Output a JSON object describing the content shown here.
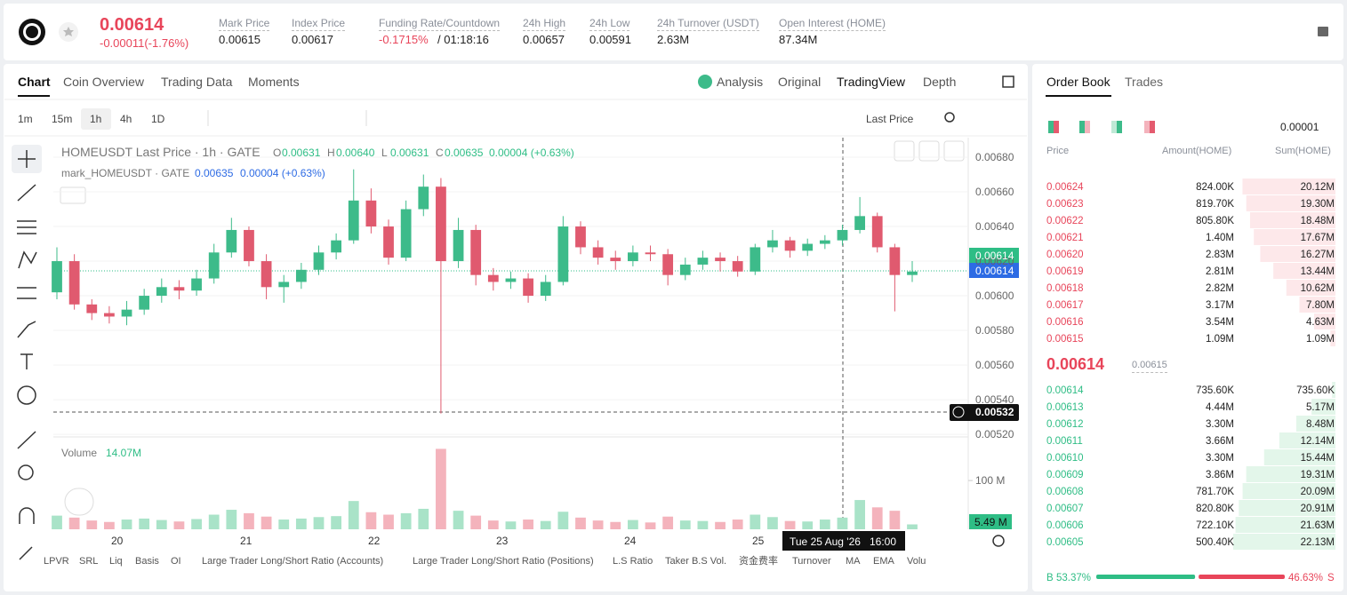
{
  "header": {
    "price": "0.00614",
    "change": "-0.00011(-1.76%)",
    "stats": [
      {
        "label": "Mark Price",
        "value": "0.00615"
      },
      {
        "label": "Index Price",
        "value": "0.00617"
      },
      {
        "label": "Funding Rate/Countdown",
        "value": "-0.1715%",
        "extra": "/ 01:18:16"
      },
      {
        "label": "24h High",
        "value": "0.00657"
      },
      {
        "label": "24h Low",
        "value": "0.00591"
      },
      {
        "label": "24h Turnover (USDT)",
        "value": "2.63M"
      },
      {
        "label": "Open Interest (HOME)",
        "value": "87.34M"
      }
    ]
  },
  "tabs": {
    "left": [
      "Chart",
      "Coin Overview",
      "Trading Data",
      "Moments"
    ],
    "right": [
      "Analysis",
      "Original",
      "TradingView",
      "Depth"
    ]
  },
  "toolbar": {
    "intervals": [
      "1m",
      "15m",
      "1h",
      "4h",
      "1D"
    ],
    "price_type": "Last Price"
  },
  "chart": {
    "legend": "HOMEUSDT Last Price · 1h · GATE",
    "ohlc": [
      {
        "label": "O",
        "value": "0.00631"
      },
      {
        "label": "H",
        "value": "0.00640"
      },
      {
        "label": "L",
        "value": "0.00631"
      },
      {
        "label": "C",
        "value": "0.00635"
      }
    ],
    "change": "0.00004 (+0.63%)",
    "mark_legend": "mark_HOMEUSDT · GATE",
    "mark_value": "0.00635",
    "mark_change": "0.00004 (+0.63%)",
    "ylim": [
      0.005185,
      0.006913
    ],
    "yticks": [
      {
        "value": 0.0068,
        "label": "0.00680"
      },
      {
        "value": 0.0066,
        "label": "0.00660"
      },
      {
        "value": 0.0064,
        "label": "0.00640"
      },
      {
        "value": 0.0062,
        "label": "0.00620"
      },
      {
        "value": 0.006,
        "label": "0.00600"
      },
      {
        "value": 0.0058,
        "label": "0.00580"
      },
      {
        "value": 0.0056,
        "label": "0.00560"
      },
      {
        "value": 0.0054,
        "label": "0.00540"
      },
      {
        "value": 0.0052,
        "label": "0.00520"
      }
    ],
    "last_tag": "0.00614",
    "mark_tag": "0.00614",
    "cross_tag": "0.00532",
    "candles": [
      [
        0.00602,
        0.00628,
        0.00598,
        0.0062
      ],
      [
        0.0062,
        0.00624,
        0.00592,
        0.00595
      ],
      [
        0.00595,
        0.00598,
        0.00586,
        0.0059
      ],
      [
        0.0059,
        0.00594,
        0.00584,
        0.00588
      ],
      [
        0.00588,
        0.00597,
        0.00583,
        0.00592
      ],
      [
        0.00592,
        0.00604,
        0.00589,
        0.006
      ],
      [
        0.006,
        0.0061,
        0.00596,
        0.00605
      ],
      [
        0.00605,
        0.00609,
        0.00598,
        0.00603
      ],
      [
        0.00603,
        0.00615,
        0.006,
        0.0061
      ],
      [
        0.0061,
        0.0063,
        0.00607,
        0.00625
      ],
      [
        0.00625,
        0.00645,
        0.00622,
        0.00638
      ],
      [
        0.00638,
        0.0064,
        0.00617,
        0.0062
      ],
      [
        0.0062,
        0.00624,
        0.00598,
        0.00605
      ],
      [
        0.00605,
        0.00612,
        0.00596,
        0.00608
      ],
      [
        0.00608,
        0.00619,
        0.00604,
        0.00615
      ],
      [
        0.00615,
        0.00629,
        0.00612,
        0.00625
      ],
      [
        0.00625,
        0.00636,
        0.00621,
        0.00632
      ],
      [
        0.00632,
        0.00673,
        0.0063,
        0.00655
      ],
      [
        0.00655,
        0.00662,
        0.00636,
        0.0064
      ],
      [
        0.0064,
        0.00644,
        0.00618,
        0.00622
      ],
      [
        0.00622,
        0.00655,
        0.0062,
        0.0065
      ],
      [
        0.0065,
        0.0067,
        0.00646,
        0.00663
      ],
      [
        0.00663,
        0.00668,
        0.00532,
        0.0062
      ],
      [
        0.0062,
        0.00645,
        0.00616,
        0.00638
      ],
      [
        0.00638,
        0.00641,
        0.00606,
        0.00612
      ],
      [
        0.00612,
        0.00616,
        0.00603,
        0.00608
      ],
      [
        0.00608,
        0.00614,
        0.00604,
        0.0061
      ],
      [
        0.0061,
        0.00613,
        0.00596,
        0.006
      ],
      [
        0.006,
        0.00612,
        0.00597,
        0.00608
      ],
      [
        0.00608,
        0.00646,
        0.00606,
        0.0064
      ],
      [
        0.0064,
        0.00643,
        0.00624,
        0.00628
      ],
      [
        0.00628,
        0.00632,
        0.00618,
        0.00622
      ],
      [
        0.00622,
        0.00626,
        0.00615,
        0.0062
      ],
      [
        0.0062,
        0.00629,
        0.00617,
        0.00625
      ],
      [
        0.00625,
        0.00629,
        0.0062,
        0.00624
      ],
      [
        0.00624,
        0.00627,
        0.00606,
        0.00612
      ],
      [
        0.00612,
        0.00622,
        0.00609,
        0.00618
      ],
      [
        0.00618,
        0.00626,
        0.00615,
        0.00622
      ],
      [
        0.00622,
        0.00625,
        0.00614,
        0.0062
      ],
      [
        0.0062,
        0.00623,
        0.00611,
        0.00614
      ],
      [
        0.00614,
        0.0063,
        0.00612,
        0.00628
      ],
      [
        0.00628,
        0.00638,
        0.00625,
        0.00632
      ],
      [
        0.00632,
        0.00634,
        0.00622,
        0.00626
      ],
      [
        0.00626,
        0.00633,
        0.00623,
        0.0063
      ],
      [
        0.0063,
        0.00635,
        0.00627,
        0.00632
      ],
      [
        0.00632,
        0.00641,
        0.00629,
        0.00638
      ],
      [
        0.00638,
        0.00657,
        0.00636,
        0.00646
      ],
      [
        0.00646,
        0.00648,
        0.00625,
        0.00628
      ],
      [
        0.00628,
        0.0063,
        0.00591,
        0.00612
      ],
      [
        0.00612,
        0.0062,
        0.00608,
        0.00614
      ]
    ],
    "volume_title": "Volume",
    "volume_value": "14.07M",
    "vlim": [
      0,
      184
    ],
    "vticks": [
      {
        "value": 100,
        "label": "100 M"
      }
    ],
    "volume_tag": "5.49 M",
    "volumes": [
      28,
      24,
      18,
      15,
      20,
      22,
      19,
      16,
      21,
      30,
      40,
      33,
      26,
      20,
      22,
      25,
      27,
      58,
      35,
      30,
      33,
      42,
      165,
      38,
      28,
      18,
      16,
      20,
      17,
      36,
      24,
      18,
      15,
      19,
      14,
      26,
      18,
      17,
      15,
      20,
      30,
      25,
      17,
      16,
      20,
      24,
      60,
      45,
      38,
      10
    ],
    "days": [
      "20",
      "21",
      "22",
      "23",
      "24",
      "25"
    ],
    "cross_date": "Tue 25 Aug '26",
    "cross_time": "16:00"
  },
  "indicators": [
    "LPVR",
    "SRL",
    "Liq",
    "Basis",
    "OI",
    "Large Trader Long/Short Ratio (Accounts)",
    "Large Trader Long/Short Ratio (Positions)",
    "L.S Ratio",
    "Taker B.S Vol.",
    "资金费率",
    "Turnover",
    "MA",
    "EMA",
    "Volu"
  ],
  "order_book": {
    "tabs": [
      "Order Book",
      "Trades"
    ],
    "precision": "0.00001",
    "columns": [
      "Price",
      "Amount(HOME)",
      "Sum(HOME)"
    ],
    "asks": [
      [
        "0.00624",
        "824.00K",
        "20.12M"
      ],
      [
        "0.00623",
        "819.70K",
        "19.30M"
      ],
      [
        "0.00622",
        "805.80K",
        "18.48M"
      ],
      [
        "0.00621",
        "1.40M",
        "17.67M"
      ],
      [
        "0.00620",
        "2.83M",
        "16.27M"
      ],
      [
        "0.00619",
        "2.81M",
        "13.44M"
      ],
      [
        "0.00618",
        "2.82M",
        "10.62M"
      ],
      [
        "0.00617",
        "3.17M",
        "7.80M"
      ],
      [
        "0.00616",
        "3.54M",
        "4.63M"
      ],
      [
        "0.00615",
        "1.09M",
        "1.09M"
      ]
    ],
    "last": "0.00614",
    "mark": "0.00615",
    "bids": [
      [
        "0.00614",
        "735.60K",
        "735.60K"
      ],
      [
        "0.00613",
        "4.44M",
        "5.17M"
      ],
      [
        "0.00612",
        "3.30M",
        "8.48M"
      ],
      [
        "0.00611",
        "3.66M",
        "12.14M"
      ],
      [
        "0.00610",
        "3.30M",
        "15.44M"
      ],
      [
        "0.00609",
        "3.86M",
        "19.31M"
      ],
      [
        "0.00608",
        "781.70K",
        "20.09M"
      ],
      [
        "0.00607",
        "820.80K",
        "20.91M"
      ],
      [
        "0.00606",
        "722.10K",
        "21.63M"
      ],
      [
        "0.00605",
        "500.40K",
        "22.13M"
      ]
    ],
    "buy_label": "B",
    "buy_pct": "53.37%",
    "sell_pct": "46.63%",
    "sell_label": "S"
  }
}
